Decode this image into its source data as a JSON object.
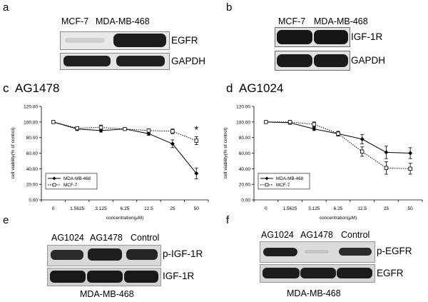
{
  "panels": {
    "a": {
      "letter": "a",
      "samples": [
        "MCF-7",
        "MDA-MB-468"
      ],
      "rows": [
        {
          "label": "EGFR",
          "bands": [
            0.12,
            1.0
          ]
        },
        {
          "label": "GAPDH",
          "bands": [
            0.9,
            0.9
          ]
        }
      ]
    },
    "b": {
      "letter": "b",
      "samples": [
        "MCF-7",
        "MDA-MB-468"
      ],
      "rows": [
        {
          "label": "IGF-1R",
          "bands": [
            1.0,
            1.0
          ]
        },
        {
          "label": "GAPDH",
          "bands": [
            1.0,
            1.0
          ]
        }
      ]
    },
    "c": {
      "letter": "c"
    },
    "d": {
      "letter": "d"
    },
    "e": {
      "letter": "e",
      "samples": [
        "AG1024",
        "AG1478",
        "Control"
      ],
      "rows": [
        {
          "label": "p-IGF-1R",
          "bands": [
            0.9,
            0.95,
            0.9
          ]
        },
        {
          "label": "IGF-1R",
          "bands": [
            0.95,
            0.95,
            0.95
          ]
        }
      ],
      "cell_line": "MDA-MB-468"
    },
    "f": {
      "letter": "f",
      "samples": [
        "AG1024",
        "AG1478",
        "Control"
      ],
      "rows": [
        {
          "label": "p-EGFR",
          "bands": [
            0.9,
            0.08,
            0.75
          ]
        },
        {
          "label": "EGFR",
          "bands": [
            0.95,
            0.95,
            0.95
          ]
        }
      ],
      "cell_line": "MDA-MB-468"
    }
  },
  "chart_data": [
    {
      "type": "line",
      "title": "AG1478",
      "xlabel": "concentration(μM)",
      "ylabel": "cell viability(% of control)",
      "categories": [
        "0",
        "1.5625",
        "3.125",
        "6.25",
        "12.5",
        "25",
        "50"
      ],
      "ylim": [
        0,
        120
      ],
      "yticks": [
        "0.00",
        "20.00",
        "40.00",
        "60.00",
        "80.00",
        "100.00",
        "120.00"
      ],
      "legend": "lower-left",
      "annotation": "*",
      "series": [
        {
          "name": "MDA-MB-468",
          "style": "solid-diamond",
          "values": [
            100,
            91,
            89,
            91,
            85,
            72,
            34
          ],
          "errors": [
            0,
            2,
            2,
            1,
            2,
            5,
            7
          ]
        },
        {
          "name": "MCF-7",
          "style": "dotted-square",
          "values": [
            100,
            92,
            93,
            91,
            89,
            88,
            76
          ],
          "errors": [
            0,
            2,
            3,
            1,
            2,
            3,
            5
          ]
        }
      ]
    },
    {
      "type": "line",
      "title": "AG1024",
      "xlabel": "concentration(μM)",
      "ylabel": "cell viability(% of control)",
      "categories": [
        "0",
        "1.5625",
        "3.125",
        "6.25",
        "12.5",
        "25",
        "50"
      ],
      "ylim": [
        0,
        120
      ],
      "yticks": [
        "0.00",
        "20.00",
        "40.00",
        "60.00",
        "80.00",
        "100.00",
        "120.00"
      ],
      "legend": "lower-left",
      "series": [
        {
          "name": "MDA-MB-468",
          "style": "solid-diamond",
          "values": [
            100,
            99,
            91,
            85,
            78,
            61,
            60
          ],
          "errors": [
            0,
            2,
            2,
            3,
            6,
            8,
            7
          ]
        },
        {
          "name": "MCF-7",
          "style": "dotted-square",
          "values": [
            100,
            100,
            97,
            85,
            62,
            41,
            40
          ],
          "errors": [
            0,
            2,
            3,
            3,
            6,
            8,
            7
          ]
        }
      ]
    }
  ]
}
